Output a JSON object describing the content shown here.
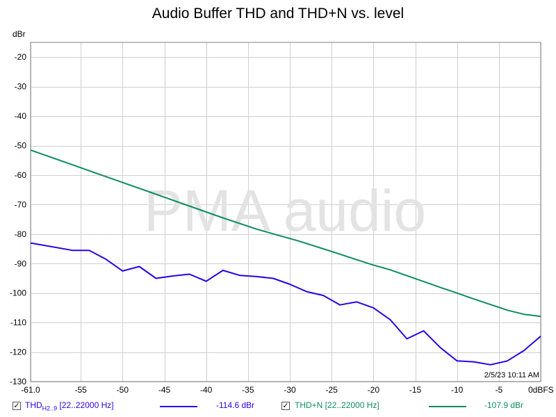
{
  "chart_data": {
    "type": "line",
    "title": "Audio Buffer THD and THD+N vs. level",
    "ylabel": "dBr",
    "x_end_label": "0dBFS",
    "xlim": [
      -61,
      0
    ],
    "ylim": [
      -130,
      -15
    ],
    "xticks": [
      -61,
      -55,
      -50,
      -45,
      -40,
      -35,
      -30,
      -25,
      -20,
      -15,
      -10,
      -5
    ],
    "xtick_labels": [
      "-61.0",
      "-55",
      "-50",
      "-45",
      "-40",
      "-35",
      "-30",
      "-25",
      "-20",
      "-15",
      "-10",
      "-5"
    ],
    "yticks": [
      -20,
      -30,
      -40,
      -50,
      -60,
      -70,
      -80,
      -90,
      -100,
      -110,
      -120,
      -130
    ],
    "grid": true,
    "watermark": "PMA audio",
    "timestamp": "2/5/23 10:11 AM",
    "series": [
      {
        "name": "THD+N [22..22000 Hz]",
        "color": "#0e8c5c",
        "x": [
          -61,
          -56,
          -50,
          -46,
          -42,
          -38,
          -34,
          -32,
          -29,
          -26,
          -24,
          -22,
          -20,
          -18,
          -16,
          -14,
          -12,
          -10,
          -8,
          -6,
          -4,
          -2,
          0
        ],
        "y": [
          -51.5,
          -56.5,
          -62.5,
          -66.5,
          -70.5,
          -74.5,
          -78.3,
          -79.9,
          -82.3,
          -85.0,
          -86.8,
          -88.7,
          -90.5,
          -92.1,
          -94.1,
          -96.1,
          -98.1,
          -100.0,
          -102.0,
          -103.9,
          -105.8,
          -107.2,
          -107.9
        ],
        "readout": "-107.9 dBr"
      },
      {
        "name": "THD",
        "name_subscript": "H2..9",
        "name_suffix": "[22..22000 Hz]",
        "color": "#2a00e6",
        "x": [
          -61,
          -56,
          -54,
          -52,
          -50,
          -48,
          -46,
          -44,
          -42,
          -40,
          -38,
          -36,
          -34,
          -32,
          -30,
          -28,
          -26,
          -24,
          -22,
          -20,
          -18,
          -16,
          -14,
          -12,
          -10,
          -8,
          -6,
          -4,
          -2,
          0
        ],
        "y": [
          -83.0,
          -85.5,
          -85.5,
          -88.5,
          -92.5,
          -91.0,
          -95.0,
          -94.2,
          -93.6,
          -96.0,
          -92.3,
          -94.0,
          -94.4,
          -95.0,
          -97.0,
          -99.5,
          -100.8,
          -104.0,
          -103.0,
          -105.0,
          -109.0,
          -115.5,
          -112.8,
          -118.5,
          -123.0,
          -123.3,
          -124.3,
          -123.0,
          -119.5,
          -114.6
        ],
        "readout": "-114.6 dBr"
      }
    ]
  }
}
